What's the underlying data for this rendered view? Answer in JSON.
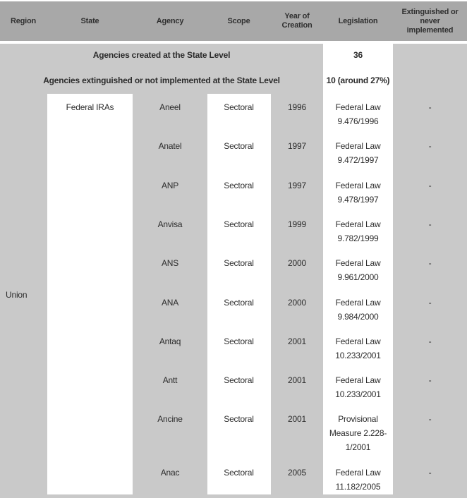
{
  "table": {
    "colors": {
      "header_bg": "#a8a8a8",
      "body_bg": "#c9c9c9",
      "cell_bg": "#ffffff",
      "text": "#2c2c2c"
    },
    "columns": [
      {
        "key": "region",
        "label": "Region"
      },
      {
        "key": "state",
        "label": "State"
      },
      {
        "key": "agency",
        "label": "Agency"
      },
      {
        "key": "scope",
        "label": "Scope"
      },
      {
        "key": "year",
        "label": "Year of Creation"
      },
      {
        "key": "legislation",
        "label": "Legislation"
      },
      {
        "key": "extinguished",
        "label": "Extinguished or never implemented"
      }
    ],
    "summary_rows": [
      {
        "label": "Agencies created at the State Level",
        "value": "36"
      },
      {
        "label": "Agencies extinguished or not implemented at the State Level",
        "value": "10 (around 27%)"
      }
    ],
    "region_label": "Union",
    "state_label": "Federal IRAs",
    "rows": [
      {
        "agency": "Aneel",
        "scope": "Sectoral",
        "year": "1996",
        "legislation": "Federal Law\n9.476/1996",
        "extinguished": "-"
      },
      {
        "agency": "Anatel",
        "scope": "Sectoral",
        "year": "1997",
        "legislation": "Federal Law\n9.472/1997",
        "extinguished": "-"
      },
      {
        "agency": "ANP",
        "scope": "Sectoral",
        "year": "1997",
        "legislation": "Federal Law\n9.478/1997",
        "extinguished": "-"
      },
      {
        "agency": "Anvisa",
        "scope": "Sectoral",
        "year": "1999",
        "legislation": "Federal Law\n9.782/1999",
        "extinguished": "-"
      },
      {
        "agency": "ANS",
        "scope": "Sectoral",
        "year": "2000",
        "legislation": "Federal Law\n9.961/2000",
        "extinguished": "-"
      },
      {
        "agency": "ANA",
        "scope": "Sectoral",
        "year": "2000",
        "legislation": "Federal Law\n9.984/2000",
        "extinguished": "-"
      },
      {
        "agency": "Antaq",
        "scope": "Sectoral",
        "year": "2001",
        "legislation": "Federal Law\n10.233/2001",
        "extinguished": "-"
      },
      {
        "agency": "Antt",
        "scope": "Sectoral",
        "year": "2001",
        "legislation": "Federal Law\n10.233/2001",
        "extinguished": "-"
      },
      {
        "agency": "Ancine",
        "scope": "Sectoral",
        "year": "2001",
        "legislation": "Provisional\nMeasure 2.228-\n1/2001",
        "extinguished": "-"
      },
      {
        "agency": "Anac",
        "scope": "Sectoral",
        "year": "2005",
        "legislation": "Federal Law\n11.182/2005",
        "extinguished": "-"
      }
    ]
  }
}
